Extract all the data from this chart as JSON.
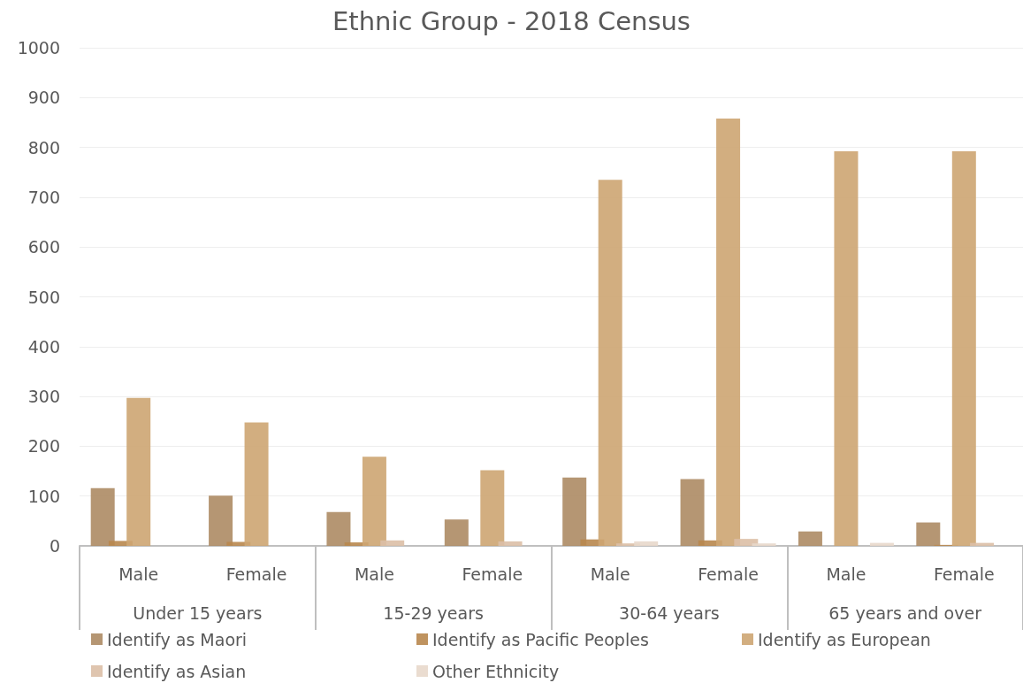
{
  "chart_data": {
    "type": "bar",
    "title": "Ethnic Group - 2018 Census",
    "categories": [
      "Male",
      "Female",
      "Male",
      "Female",
      "Male",
      "Female",
      "Male",
      "Female"
    ],
    "annotations": [
      "Under 15 years",
      "15-29 years",
      "30-64 years",
      "65 years and over"
    ],
    "series": [
      {
        "name": "Identify as Maori",
        "color": "#ad8b64",
        "values": [
          116,
          101,
          68,
          53,
          137,
          134,
          29,
          47
        ]
      },
      {
        "name": "Identify as Pacific Peoples",
        "color": "#b8874e",
        "values": [
          10,
          8,
          7,
          0,
          13,
          11,
          0,
          2
        ]
      },
      {
        "name": "Identify as European",
        "color": "#cda572",
        "values": [
          297,
          248,
          179,
          152,
          735,
          858,
          792,
          792
        ]
      },
      {
        "name": "Identify as Asian",
        "color": "#dbbfa6",
        "values": [
          null,
          0,
          11,
          9,
          5,
          14,
          0,
          6
        ]
      },
      {
        "name": "Other Ethnicity",
        "color": "#e8d8cb",
        "values": [
          0,
          null,
          0,
          0,
          9,
          5,
          6,
          0
        ]
      }
    ],
    "ylim": [
      0,
      1000
    ],
    "yticks": [
      0,
      100,
      200,
      300,
      400,
      500,
      600,
      700,
      800,
      900,
      {
        "value": 1000,
        "label": "1000"
      }
    ],
    "grid": "y",
    "legend": "bottom"
  }
}
